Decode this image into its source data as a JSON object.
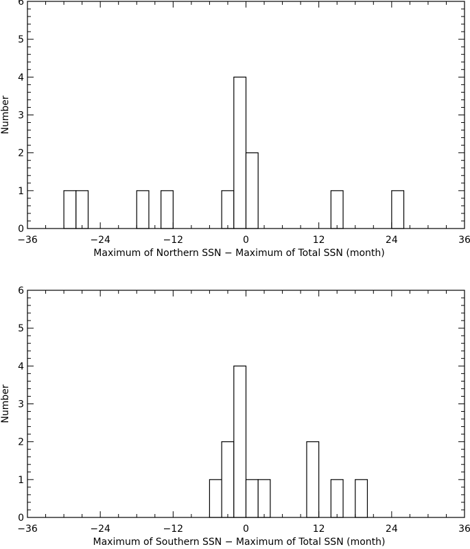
{
  "chart_data": [
    {
      "type": "bar",
      "xlabel": "Maximum of Northern SSN − Maximum of Total SSN (month)",
      "ylabel": "Number",
      "xlim": [
        -36,
        36
      ],
      "ylim": [
        0,
        6
      ],
      "xticks": [
        "−36",
        "−24",
        "−12",
        "0",
        "12",
        "24",
        "36"
      ],
      "yticks": [
        "0",
        "1",
        "2",
        "3",
        "4",
        "5",
        "6"
      ],
      "bin_width": 2,
      "bins": [
        {
          "x": -30,
          "value": 1
        },
        {
          "x": -28,
          "value": 1
        },
        {
          "x": -18,
          "value": 1
        },
        {
          "x": -14,
          "value": 1
        },
        {
          "x": -4,
          "value": 1
        },
        {
          "x": -2,
          "value": 4
        },
        {
          "x": 0,
          "value": 2
        },
        {
          "x": 14,
          "value": 1
        },
        {
          "x": 24,
          "value": 1
        }
      ]
    },
    {
      "type": "bar",
      "xlabel": "Maximum of Southern SSN − Maximum of Total SSN (month)",
      "ylabel": "Number",
      "xlim": [
        -36,
        36
      ],
      "ylim": [
        0,
        6
      ],
      "xticks": [
        "−36",
        "−24",
        "−12",
        "0",
        "12",
        "24",
        "36"
      ],
      "yticks": [
        "0",
        "1",
        "2",
        "3",
        "4",
        "5",
        "6"
      ],
      "bin_width": 2,
      "bins": [
        {
          "x": -6,
          "value": 1
        },
        {
          "x": -4,
          "value": 2
        },
        {
          "x": -2,
          "value": 4
        },
        {
          "x": 0,
          "value": 1
        },
        {
          "x": 2,
          "value": 1
        },
        {
          "x": 10,
          "value": 2
        },
        {
          "x": 14,
          "value": 1
        },
        {
          "x": 18,
          "value": 1
        }
      ]
    }
  ]
}
